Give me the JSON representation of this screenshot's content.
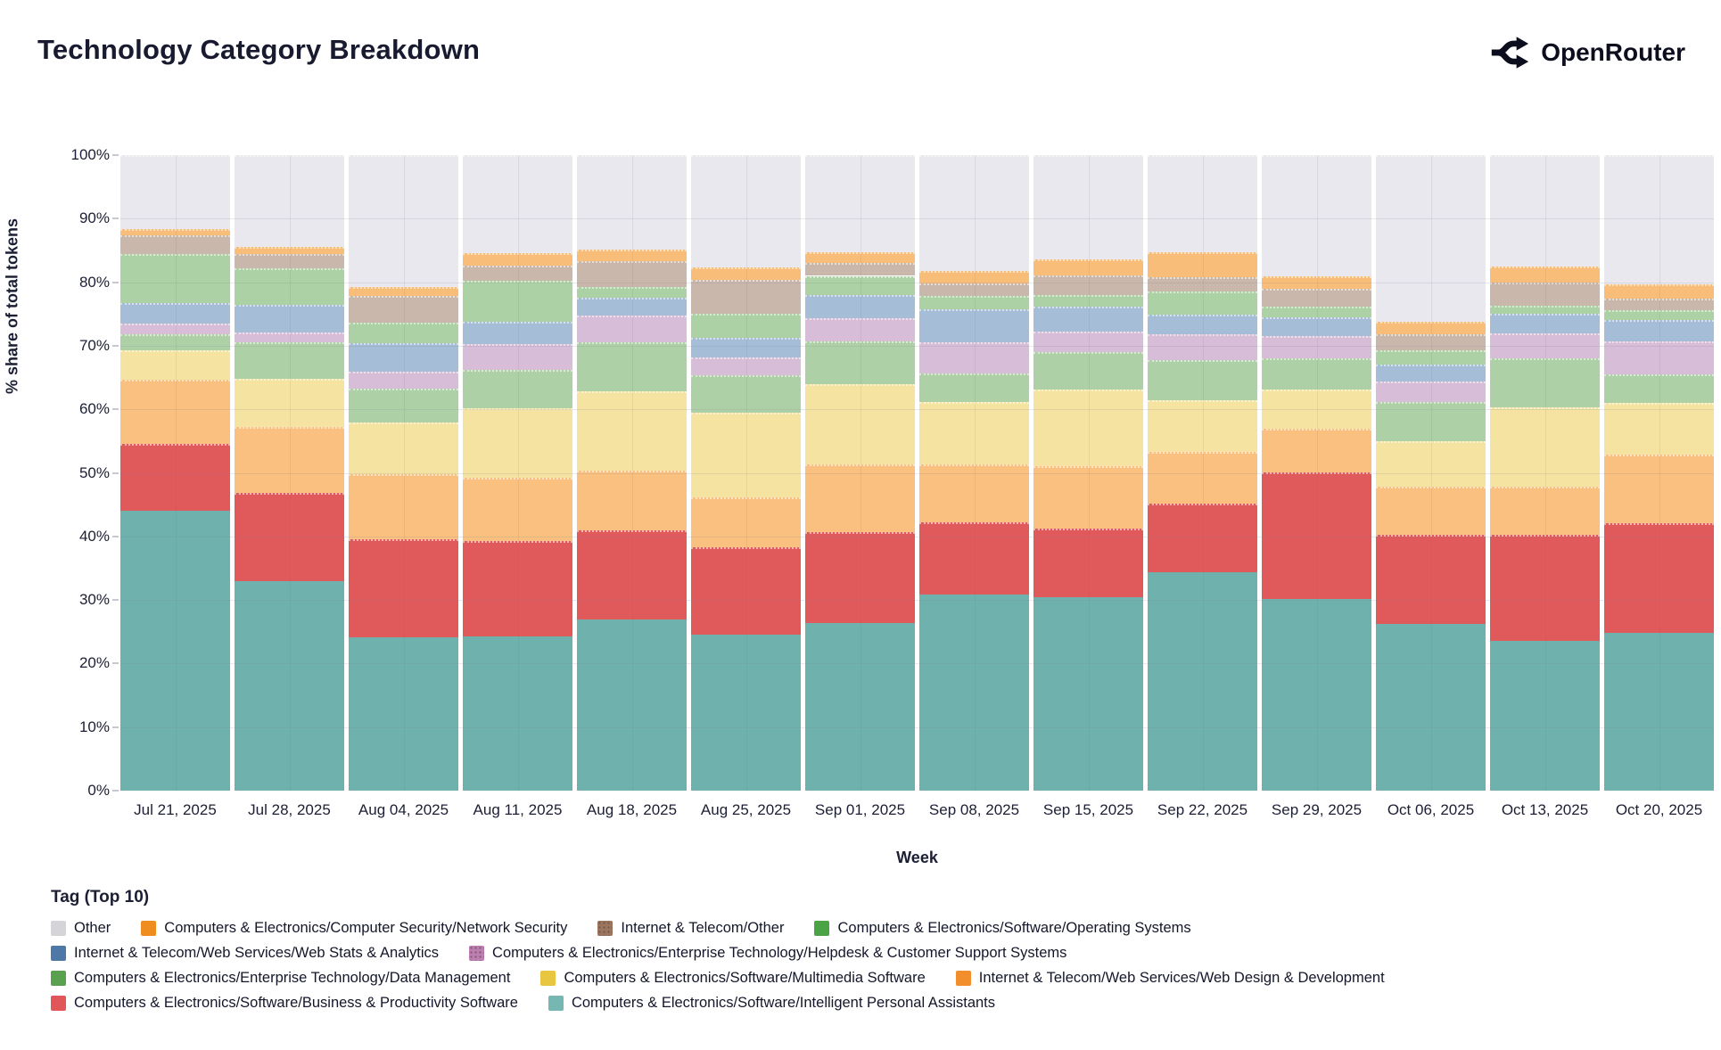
{
  "header": {
    "title": "Technology Category Breakdown",
    "brand": "OpenRouter",
    "brand_icon": "openrouter-branching-arrows"
  },
  "chart_data": {
    "type": "bar",
    "stacked": true,
    "grid": true,
    "xlabel": "Week",
    "ylabel": "% share of total tokens",
    "ylim": [
      0,
      100
    ],
    "ytick_labels": [
      "0%",
      "10%",
      "20%",
      "30%",
      "40%",
      "50%",
      "60%",
      "70%",
      "80%",
      "90%",
      "100%"
    ],
    "legend_title": "Tag (Top 10)",
    "legend_position": "bottom",
    "legend_rows": [
      [
        10,
        9,
        8,
        7
      ],
      [
        6,
        5
      ],
      [
        4,
        3,
        2
      ],
      [
        1,
        0
      ]
    ],
    "categories": [
      "Jul 21, 2025",
      "Jul 28, 2025",
      "Aug 04, 2025",
      "Aug 11, 2025",
      "Aug 18, 2025",
      "Aug 25, 2025",
      "Sep 01, 2025",
      "Sep 08, 2025",
      "Sep 15, 2025",
      "Sep 22, 2025",
      "Sep 29, 2025",
      "Oct 06, 2025",
      "Oct 13, 2025",
      "Oct 20, 2025"
    ],
    "series": [
      {
        "name": "Computers & Electronics/Software/Intelligent Personal Assistants",
        "swatch": "#76b7b2",
        "fill": "#6fb2ad",
        "pattern": "none",
        "values": [
          44.0,
          33.0,
          24.1,
          24.3,
          26.9,
          24.6,
          26.4,
          30.8,
          30.4,
          34.4,
          30.1,
          26.2,
          23.5,
          24.8
        ]
      },
      {
        "name": "Computers & Electronics/Software/Business & Productivity Software",
        "swatch": "#e15759",
        "fill": "#e05a5c",
        "pattern": "none",
        "values": [
          10.6,
          13.9,
          15.4,
          15.0,
          14.1,
          13.7,
          14.3,
          11.4,
          10.8,
          10.8,
          20.0,
          14.1,
          16.7,
          17.3
        ]
      },
      {
        "name": "Internet & Telecom/Web Services/Web Design & Development",
        "swatch": "#f28e2b",
        "fill": "#f9c080",
        "pattern": "none",
        "values": [
          10.1,
          10.3,
          10.3,
          10.0,
          9.4,
          7.8,
          10.6,
          9.1,
          9.8,
          8.1,
          6.8,
          7.5,
          7.6,
          10.8
        ]
      },
      {
        "name": "Computers & Electronics/Software/Multimedia Software",
        "swatch": "#e8c63f",
        "fill": "#f5e4a1",
        "pattern": "none",
        "values": [
          4.6,
          7.6,
          8.1,
          10.9,
          12.4,
          13.4,
          12.7,
          9.8,
          12.1,
          8.2,
          6.2,
          7.2,
          12.5,
          8.1
        ]
      },
      {
        "name": "Computers & Electronics/Enterprise Technology/Data Management",
        "swatch": "#59a14f",
        "fill": "#aed0a6",
        "pattern": "none",
        "values": [
          2.5,
          5.7,
          5.3,
          6.0,
          7.8,
          5.9,
          6.7,
          4.6,
          5.9,
          6.2,
          4.9,
          6.1,
          7.7,
          4.5
        ]
      },
      {
        "name": "Computers & Electronics/Enterprise Technology/Helpdesk & Customer Support Systems",
        "swatch": "#bd7eb1",
        "fill": "#d7bdd8",
        "pattern": "dots",
        "values": [
          1.7,
          1.6,
          2.7,
          4.0,
          4.1,
          2.8,
          3.6,
          4.9,
          3.2,
          4.1,
          3.6,
          3.3,
          3.9,
          5.2
        ]
      },
      {
        "name": "Internet & Telecom/Web Services/Web Stats & Analytics",
        "swatch": "#4e79a7",
        "fill": "#a6bdd8",
        "pattern": "none",
        "values": [
          3.2,
          4.4,
          4.5,
          3.6,
          2.9,
          3.0,
          3.7,
          5.2,
          4.0,
          3.1,
          2.9,
          2.6,
          3.2,
          3.3
        ]
      },
      {
        "name": "Computers & Electronics/Software/Operating Systems",
        "swatch": "#4aa344",
        "fill": "#abd1a5",
        "pattern": "none",
        "values": [
          7.7,
          5.7,
          3.3,
          6.4,
          1.7,
          3.8,
          3.0,
          2.0,
          1.8,
          3.6,
          1.7,
          2.3,
          1.2,
          1.6
        ]
      },
      {
        "name": "Internet & Telecom/Other",
        "swatch": "#9c755f",
        "fill": "#cab7ac",
        "pattern": "swatch-dots",
        "values": [
          3.0,
          2.3,
          4.1,
          2.4,
          4.0,
          5.4,
          2.0,
          2.0,
          3.1,
          2.3,
          2.8,
          2.5,
          3.6,
          1.8
        ]
      },
      {
        "name": "Computers & Electronics/Computer Security/Network Security",
        "swatch": "#ef8d1f",
        "fill": "#f8bd78",
        "pattern": "none",
        "values": [
          1.0,
          1.0,
          1.4,
          2.0,
          1.8,
          2.0,
          1.7,
          2.0,
          2.5,
          3.9,
          1.9,
          2.0,
          2.6,
          2.3
        ]
      },
      {
        "name": "Other",
        "swatch": "#d4d4d9",
        "fill": "#e9e8ee",
        "pattern": "none",
        "values": [
          11.6,
          14.5,
          20.8,
          15.4,
          14.9,
          17.6,
          15.3,
          18.2,
          16.4,
          15.3,
          19.1,
          26.2,
          17.5,
          20.3
        ]
      }
    ]
  }
}
